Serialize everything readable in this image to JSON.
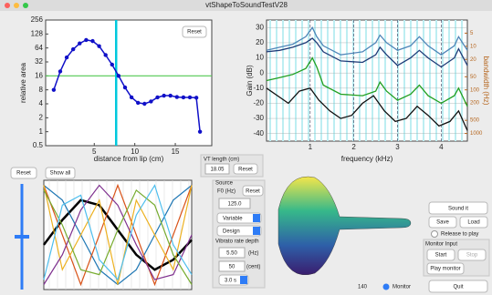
{
  "window": {
    "title": "vtShapeToSoundTestV28"
  },
  "chart_data": [
    {
      "type": "line",
      "xlabel": "distance from lip (cm)",
      "ylabel": "relative area",
      "log_y": true,
      "xlim": [
        -1,
        19.5
      ],
      "ylim": [
        0.5,
        256
      ],
      "xticks": [
        5,
        10,
        15
      ],
      "yticks": [
        0.5,
        1,
        2,
        4,
        8,
        16,
        32,
        64,
        128,
        256
      ],
      "series": [
        {
          "color": "#1010c8",
          "markers": true,
          "x": [
            0,
            0.8,
            1.6,
            2.4,
            3.2,
            4,
            4.8,
            5.6,
            6.4,
            7.2,
            8,
            8.8,
            9.6,
            10.4,
            11.2,
            12,
            12.8,
            13.6,
            14.4,
            15.2,
            16,
            16.8,
            17.6,
            18.05
          ],
          "values": [
            8,
            20,
            40,
            60,
            80,
            95,
            90,
            70,
            45,
            28,
            16,
            9,
            5.5,
            4.2,
            4,
            4.5,
            5.5,
            6,
            6,
            5.6,
            5.5,
            5.5,
            5.4,
            1
          ]
        }
      ],
      "cursor_x": 7.7,
      "cursor_color": "#00c8dc",
      "reference_y": 16,
      "reference_color": "#50c850",
      "reset": "Reset"
    },
    {
      "type": "line",
      "xlabel": "frequency (kHz)",
      "ylabel": "Gain (dB)",
      "y2label": "bandwidth (Hz)",
      "xlim": [
        0,
        4.6
      ],
      "ylim": [
        -45,
        35
      ],
      "xticks": [
        1,
        2,
        3,
        4
      ],
      "yticks": [
        30,
        20,
        10,
        0,
        -10,
        -20,
        -30,
        -40
      ],
      "y2_log": true,
      "y2lim": [
        1500,
        2.5
      ],
      "y2ticks": [
        5,
        10,
        20,
        50,
        100,
        200,
        500,
        1000
      ],
      "series": [
        {
          "color": "#4f86b8",
          "x": [
            0,
            0.3,
            0.6,
            0.9,
            1.05,
            1.15,
            1.3,
            1.7,
            2.2,
            2.5,
            2.6,
            2.75,
            3.0,
            3.3,
            3.5,
            3.7,
            4.0,
            4.3,
            4.4,
            4.6
          ],
          "values": [
            15,
            17,
            19,
            24,
            30,
            24,
            18,
            12,
            14,
            20,
            25,
            20,
            15,
            18,
            24,
            18,
            12,
            18,
            24,
            15
          ]
        },
        {
          "color": "#1e3c78",
          "x": [
            0,
            0.3,
            0.6,
            0.9,
            1.05,
            1.15,
            1.3,
            1.7,
            2.2,
            2.5,
            2.6,
            2.75,
            3.0,
            3.3,
            3.5,
            3.7,
            4.0,
            4.3,
            4.4,
            4.6
          ],
          "values": [
            14,
            15,
            17,
            20,
            23,
            20,
            14,
            8,
            7,
            12,
            17,
            12,
            5,
            10,
            15,
            10,
            4,
            10,
            16,
            5
          ]
        },
        {
          "color": "#22a022",
          "x": [
            0,
            0.3,
            0.6,
            0.9,
            1.05,
            1.15,
            1.3,
            1.7,
            2.2,
            2.5,
            2.6,
            2.75,
            3.0,
            3.3,
            3.5,
            3.7,
            4.0,
            4.3,
            4.4,
            4.6
          ],
          "values": [
            -5,
            -3,
            -1,
            3,
            10,
            4,
            -8,
            -14,
            -15,
            -12,
            -6,
            -12,
            -18,
            -14,
            -8,
            -15,
            -20,
            -15,
            -10,
            -22
          ]
        },
        {
          "color": "#111111",
          "x": [
            0,
            0.25,
            0.5,
            0.75,
            1.0,
            1.2,
            1.45,
            1.7,
            1.95,
            2.2,
            2.45,
            2.7,
            2.95,
            3.2,
            3.45,
            3.7,
            3.95,
            4.2,
            4.4,
            4.6
          ],
          "values": [
            -10,
            -15,
            -20,
            -12,
            -10,
            -18,
            -25,
            -30,
            -28,
            -20,
            -15,
            -25,
            -32,
            -30,
            -22,
            -28,
            -35,
            -32,
            -25,
            -38
          ]
        }
      ]
    },
    {
      "type": "line",
      "xlim": [
        0,
        8
      ],
      "ylim": [
        -1.1,
        1.1
      ],
      "series": [
        {
          "color": "#000000",
          "x": [
            0,
            1,
            2,
            3,
            4,
            5,
            6,
            7,
            8
          ],
          "values": [
            -0.2,
            0.3,
            0.7,
            0.6,
            0.1,
            -0.4,
            -0.7,
            -0.5,
            -0.1
          ]
        },
        {
          "color": "#1f77b4",
          "x": [
            0,
            1,
            2,
            3,
            4,
            5,
            6,
            7,
            8
          ],
          "values": [
            1,
            0.7,
            0,
            -0.7,
            -1,
            -0.7,
            0,
            0.7,
            1
          ]
        },
        {
          "color": "#d95319",
          "x": [
            0,
            1,
            2,
            3,
            4,
            5,
            6,
            7,
            8
          ],
          "values": [
            1,
            0,
            -1,
            0,
            1,
            0,
            -1,
            0,
            1
          ]
        },
        {
          "color": "#edb120",
          "x": [
            0,
            1,
            2,
            3,
            4,
            5,
            6,
            7,
            8
          ],
          "values": [
            1,
            -0.7,
            0,
            0.7,
            -1,
            0.7,
            0,
            -0.7,
            1
          ]
        },
        {
          "color": "#7e2f8e",
          "x": [
            0,
            1,
            2,
            3,
            4,
            5,
            6,
            7,
            8
          ],
          "values": [
            -1,
            -0.4,
            0.5,
            1,
            0.6,
            -0.2,
            -0.9,
            -0.8,
            0
          ]
        },
        {
          "color": "#77ac30",
          "x": [
            0,
            1,
            2,
            3,
            4,
            5,
            6,
            7,
            8
          ],
          "values": [
            0.9,
            0.2,
            -0.7,
            -0.8,
            0.1,
            0.9,
            0.6,
            -0.4,
            -1
          ]
        },
        {
          "color": "#4dbeee",
          "x": [
            0,
            1,
            2,
            3,
            4,
            5,
            6,
            7,
            8
          ],
          "values": [
            -0.9,
            0.6,
            0.8,
            -0.5,
            -0.9,
            0.4,
            1,
            -0.2,
            -0.8
          ]
        }
      ]
    }
  ],
  "controls": {
    "reset": "Reset",
    "show_all": "Show all",
    "vt_length_label": "VT length (cm)",
    "vt_length": "18.05",
    "vt_reset": "Reset",
    "source_label": "Source",
    "f0_label": "F0  (Hz)",
    "f0_reset": "Reset",
    "f0": "125.0",
    "variable": "Variable",
    "design": "Design",
    "vibrato_label": "Vibrato rate depth",
    "vibrato_rate": "5.50",
    "rate_unit": "(Hz)",
    "vibrato_depth": "50",
    "depth_unit": "(cent)",
    "duration": "3.0 s",
    "sound_it": "Sound it",
    "save": "Save",
    "load": "Load",
    "release": "Release to play",
    "monitor_input": "Monitor Input",
    "start": "Start",
    "stop": "Stop",
    "play_monitor": "Play monitor",
    "quit": "Quit",
    "counter": "140",
    "monitor": "Monitor"
  }
}
